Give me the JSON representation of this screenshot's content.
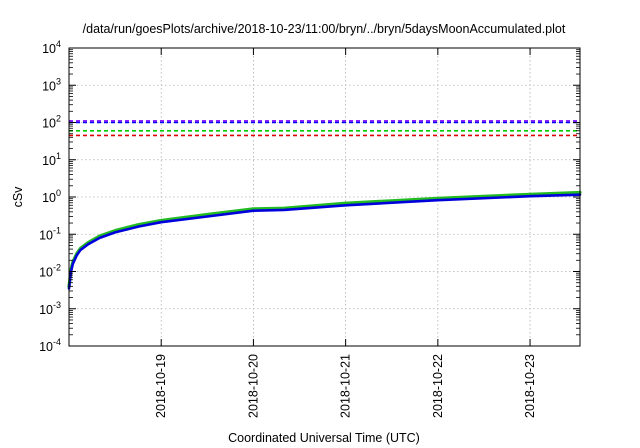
{
  "chart_data": {
    "type": "line",
    "title": "/data/run/goesPlots/archive/2018-10-23/11:00/bryn/../bryn/5daysMoonAccumulated.plot",
    "xlabel": "Coordinated Universal Time (UTC)",
    "ylabel": "cSv",
    "y_scale": "log",
    "ylim": [
      0.0001,
      10000
    ],
    "y_ticks": [
      {
        "base": "10",
        "exp": "-4",
        "value": 0.0001
      },
      {
        "base": "10",
        "exp": "-3",
        "value": 0.001
      },
      {
        "base": "10",
        "exp": "-2",
        "value": 0.01
      },
      {
        "base": "10",
        "exp": "-1",
        "value": 0.1
      },
      {
        "base": "10",
        "exp": "0",
        "value": 1
      },
      {
        "base": "10",
        "exp": "1",
        "value": 10
      },
      {
        "base": "10",
        "exp": "2",
        "value": 100
      },
      {
        "base": "10",
        "exp": "3",
        "value": 1000
      },
      {
        "base": "10",
        "exp": "4",
        "value": 10000
      }
    ],
    "xlim": [
      "2018-10-18T00:00",
      "2018-10-23T13:00"
    ],
    "x_ticks": [
      "2018-10-19",
      "2018-10-20",
      "2018-10-21",
      "2018-10-22",
      "2018-10-23"
    ],
    "grid": true,
    "legend": "none",
    "threshold_lines": [
      {
        "value": 110,
        "color": "#7f00ff",
        "style": "dashed"
      },
      {
        "value": 100,
        "color": "#0000ff",
        "style": "dashed"
      },
      {
        "value": 60,
        "color": "#00cc00",
        "style": "dashed"
      },
      {
        "value": 45,
        "color": "#dd0000",
        "style": "dashed"
      }
    ],
    "series": [
      {
        "color": "#22bb22",
        "x": [
          "2018-10-18T00:00",
          "2018-10-18T00:30",
          "2018-10-18T01:00",
          "2018-10-18T02:00",
          "2018-10-18T03:00",
          "2018-10-18T05:00",
          "2018-10-18T08:00",
          "2018-10-18T12:00",
          "2018-10-18T18:00",
          "2018-10-19T00:00",
          "2018-10-19T12:00",
          "2018-10-20T00:00",
          "2018-10-20T08:00",
          "2018-10-21T00:00",
          "2018-10-22T00:00",
          "2018-10-23T00:00",
          "2018-10-23T13:00"
        ],
        "values": [
          0.004,
          0.011,
          0.018,
          0.03,
          0.042,
          0.06,
          0.09,
          0.125,
          0.18,
          0.235,
          0.34,
          0.48,
          0.5,
          0.68,
          0.92,
          1.18,
          1.32
        ]
      },
      {
        "color": "#0000dd",
        "x": [
          "2018-10-18T00:00",
          "2018-10-18T00:30",
          "2018-10-18T01:00",
          "2018-10-18T02:00",
          "2018-10-18T03:00",
          "2018-10-18T05:00",
          "2018-10-18T08:00",
          "2018-10-18T12:00",
          "2018-10-18T18:00",
          "2018-10-19T00:00",
          "2018-10-19T12:00",
          "2018-10-20T00:00",
          "2018-10-20T08:00",
          "2018-10-21T00:00",
          "2018-10-22T00:00",
          "2018-10-23T00:00",
          "2018-10-23T13:00"
        ],
        "values": [
          0.0035,
          0.0095,
          0.016,
          0.027,
          0.038,
          0.054,
          0.08,
          0.112,
          0.16,
          0.21,
          0.3,
          0.43,
          0.45,
          0.6,
          0.82,
          1.05,
          1.15
        ]
      }
    ]
  }
}
